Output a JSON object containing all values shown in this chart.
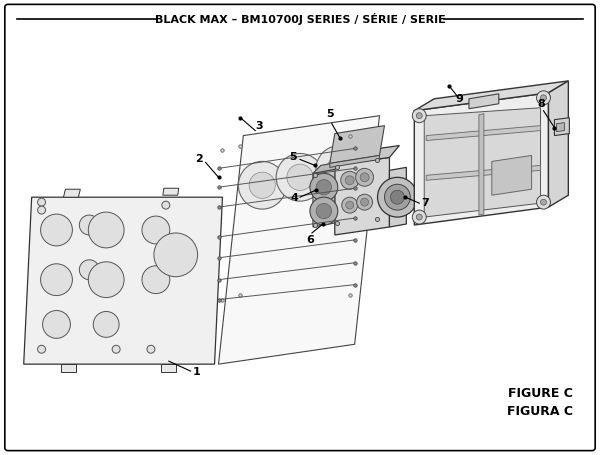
{
  "title": "BLACK MAX – BM10700J SERIES / SÉRIE / SERIE",
  "figure_label": "FIGURE C",
  "figura_label": "FIGURA C",
  "bg_color": "#ffffff",
  "border_color": "#000000",
  "text_color": "#000000"
}
